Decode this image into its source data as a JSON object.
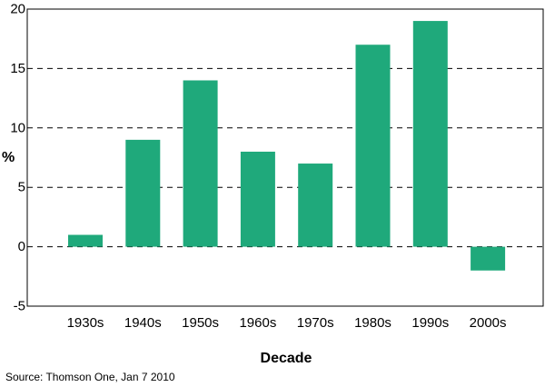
{
  "chart_data": {
    "type": "bar",
    "categories": [
      "1930s",
      "1940s",
      "1950s",
      "1960s",
      "1970s",
      "1980s",
      "1990s",
      "2000s"
    ],
    "values": [
      1,
      9,
      14,
      8,
      7,
      17,
      19,
      -2
    ],
    "title": "",
    "xlabel": "Decade",
    "ylabel": "%",
    "ylim": [
      -5,
      20
    ],
    "yticks": [
      20,
      15,
      10,
      5,
      0,
      -5
    ],
    "grid": "horizontal dashed",
    "bar_color": "#1fa97b",
    "source": "Source: Thomson One, Jan 7 2010"
  }
}
